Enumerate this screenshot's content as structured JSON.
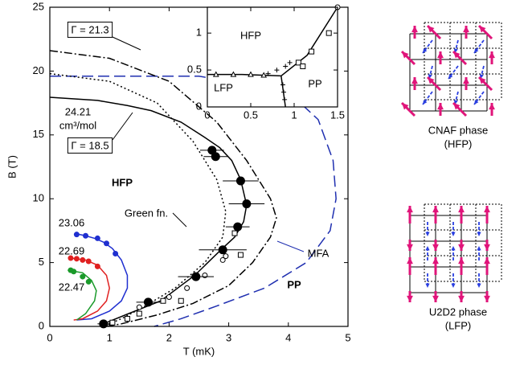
{
  "chart_data": [
    {
      "type": "line",
      "xlabel": "T (mK)",
      "ylabel": "B (T)",
      "xlim": [
        0,
        5
      ],
      "ylim": [
        0,
        25
      ],
      "xticks": [
        0,
        1,
        2,
        3,
        4,
        5
      ],
      "yticks": [
        0,
        5,
        10,
        15,
        20,
        25
      ],
      "series": [
        {
          "style": "dashed",
          "color": "#1f2fb0",
          "x": [
            0,
            1.5,
            2.5,
            3.5,
            4.2,
            4.5,
            4.75,
            4.8,
            4.7,
            4.3,
            3.6,
            2.8,
            2.2,
            1.75
          ],
          "values": [
            19.6,
            19.6,
            19.6,
            18.8,
            17.5,
            16.2,
            13,
            10,
            7.5,
            5,
            3,
            1.6,
            0.6,
            0
          ]
        },
        {
          "style": "dashdot",
          "color": "#000000",
          "x": [
            0,
            1,
            2,
            2.8,
            3.3,
            3.7,
            3.8,
            3.7,
            3.4,
            3.0,
            2.4,
            1.8,
            1.2,
            0.95
          ],
          "values": [
            21.6,
            21.0,
            19.2,
            16,
            13,
            10,
            8.5,
            7,
            5,
            3.2,
            1.8,
            0.9,
            0.2,
            0
          ]
        },
        {
          "style": "dotted",
          "color": "#000000",
          "x": [
            0,
            1,
            1.8,
            2.4,
            2.8,
            2.95,
            2.9,
            2.6,
            2.1,
            1.6,
            1.2,
            0.9
          ],
          "values": [
            19.8,
            19.2,
            17.5,
            14.5,
            11.5,
            9,
            7,
            5,
            3,
            1.6,
            0.6,
            0
          ]
        },
        {
          "style": "solid",
          "color": "#000000",
          "x": [
            0,
            0.8,
            1.3,
            1.7,
            2.2,
            2.6,
            2.85,
            3.05,
            3.2,
            3.3,
            3.25,
            3.1,
            2.87,
            2.43,
            2.2,
            1.86,
            1.32,
            0.95,
            0.9
          ],
          "values": [
            17.95,
            17.7,
            17.3,
            16.9,
            16.0,
            14.8,
            14,
            13,
            11.5,
            9.5,
            8.2,
            7.0,
            6,
            4,
            3.2,
            2,
            1,
            0.3,
            0
          ]
        },
        {
          "style": "solid",
          "color": "#1f2fd0",
          "x": [
            0.45,
            0.6,
            0.75,
            0.9,
            1.05,
            1.2,
            1.3,
            1.3,
            1.2,
            1.0,
            0.7,
            0.45
          ],
          "values": [
            7.25,
            7.1,
            6.9,
            6.6,
            6.1,
            5.2,
            4.0,
            3,
            2,
            1.2,
            0.6,
            0.5
          ]
        },
        {
          "style": "solid",
          "color": "#e02020",
          "x": [
            0.35,
            0.6,
            0.8,
            0.95,
            1.0,
            0.95,
            0.8,
            0.55,
            0.4
          ],
          "values": [
            5.35,
            5.2,
            4.8,
            4.0,
            3.0,
            2,
            1.2,
            0.6,
            0.5
          ]
        },
        {
          "style": "solid",
          "color": "#1a9a2a",
          "x": [
            0.3,
            0.55,
            0.7,
            0.78,
            0.75,
            0.6,
            0.45
          ],
          "values": [
            4.4,
            4.2,
            3.6,
            2.8,
            2,
            1.0,
            0.5
          ]
        },
        {
          "style": "markers",
          "marker": "dot",
          "color": "#1f2fd0",
          "x": [
            0.45,
            0.6,
            0.8,
            0.95,
            1.1
          ],
          "values": [
            7.2,
            7.1,
            6.9,
            6.5,
            5.7
          ]
        },
        {
          "style": "markers",
          "marker": "dot",
          "color": "#e02020",
          "x": [
            0.35,
            0.45,
            0.55,
            0.65,
            0.8
          ],
          "values": [
            5.35,
            5.3,
            5.2,
            5.1,
            4.7
          ]
        },
        {
          "style": "markers",
          "marker": "dot",
          "color": "#1a9a2a",
          "x": [
            0.35,
            0.4,
            0.55,
            0.65
          ],
          "values": [
            4.4,
            4.3,
            3.9,
            3.5
          ]
        },
        {
          "style": "markers",
          "marker": "open-square",
          "color": "#000000",
          "x": [
            3.1,
            3.2,
            2.2,
            1.9,
            1.5,
            1.3,
            1.05
          ],
          "values": [
            7.3,
            5.6,
            2.0,
            2.0,
            1.0,
            0.6,
            0.3
          ]
        },
        {
          "style": "markers",
          "marker": "open-circle",
          "color": "#000000",
          "x": [
            2.95,
            2.9,
            2.6,
            2.3,
            2.0,
            1.5
          ],
          "values": [
            5.5,
            5.2,
            4.0,
            3.0,
            2.3,
            1.5
          ]
        },
        {
          "style": "markers",
          "marker": "big-circle",
          "color": "#000000",
          "x": [
            2.72,
            2.78,
            3.2,
            3.3,
            3.15,
            2.9,
            2.45,
            1.65,
            0.9
          ],
          "values": [
            13.8,
            13.3,
            11.4,
            9.6,
            7.8,
            6.0,
            3.9,
            1.9,
            0.2
          ],
          "xerr": [
            0.2,
            0.2,
            0.3,
            0.3,
            0.2,
            0.4,
            0.3,
            0.2,
            0.1
          ]
        }
      ],
      "annotations": [
        {
          "text": "Γ = 21.3",
          "color": "#000000"
        },
        {
          "text": "Γ = 18.5",
          "color": "#000000"
        },
        {
          "text": "24.21",
          "color": "#000000"
        },
        {
          "text": "cm³/mol",
          "color": "#000000"
        },
        {
          "text": "HFP",
          "color": "#000000"
        },
        {
          "text": "PP",
          "color": "#000000"
        },
        {
          "text": "Green fn.",
          "color": "#000000"
        },
        {
          "text": "MFA",
          "color": "#1f2fb0"
        },
        {
          "text": "23.06",
          "color": "#1f2fd0"
        },
        {
          "text": "22.69",
          "color": "#e02020"
        },
        {
          "text": "22.47",
          "color": "#1a9a2a"
        }
      ]
    },
    {
      "type": "line",
      "xlim": [
        0,
        1.5
      ],
      "ylim": [
        0,
        1.35
      ],
      "xticks": [
        0,
        0.5,
        1,
        1.5
      ],
      "yticks": [
        0,
        0.5,
        1
      ],
      "series": [
        {
          "style": "solid",
          "color": "#000000",
          "x": [
            0,
            0.4,
            0.85,
            null,
            0.85,
            1.15,
            1.5,
            null,
            0.85,
            0.9
          ],
          "values": [
            0.44,
            0.44,
            0.42,
            null,
            0.42,
            0.7,
            1.35,
            null,
            0.42,
            0
          ]
        },
        {
          "style": "markers",
          "marker": "cross",
          "color": "#000000",
          "x": [
            0.7,
            0.8,
            0.9,
            0.95,
            0.87,
            0.88,
            0.89
          ],
          "values": [
            0.45,
            0.5,
            0.55,
            0.6,
            0.3,
            0.2,
            0.1
          ]
        },
        {
          "style": "markers",
          "marker": "open-square",
          "color": "#000000",
          "x": [
            1.05,
            1.2,
            1.4,
            1.1
          ],
          "values": [
            0.6,
            0.75,
            1.0,
            0.55
          ]
        },
        {
          "style": "markers",
          "marker": "triangle",
          "color": "#000000",
          "x": [
            0.1,
            0.3,
            0.5,
            0.65
          ],
          "values": [
            0.44,
            0.44,
            0.44,
            0.43
          ]
        },
        {
          "style": "markers",
          "marker": "open-circle",
          "color": "#000000",
          "x": [
            1.5
          ],
          "values": [
            1.35
          ]
        }
      ],
      "annotations": [
        {
          "text": "HFP",
          "color": "#000000"
        },
        {
          "text": "LFP",
          "color": "#000000"
        },
        {
          "text": "PP",
          "color": "#000000"
        }
      ]
    }
  ],
  "panels": [
    {
      "caption": "CNAF phase",
      "sub": "(HFP)"
    },
    {
      "caption": "U2D2 phase",
      "sub": "(LFP)"
    }
  ]
}
